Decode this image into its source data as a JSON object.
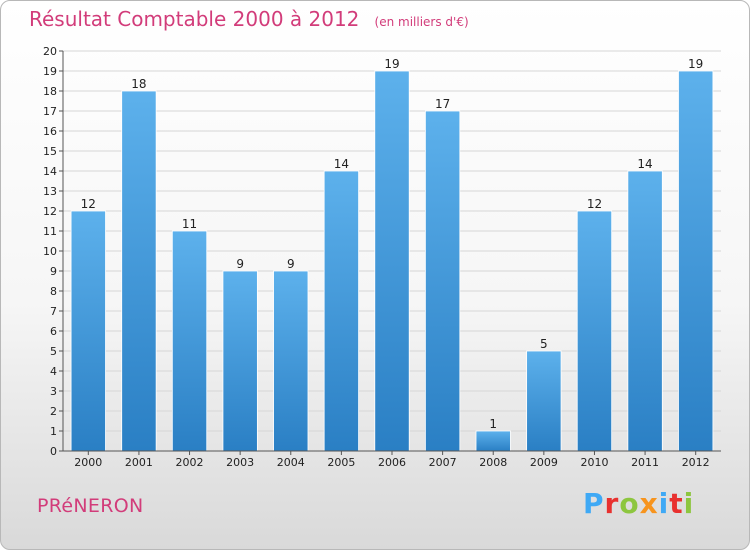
{
  "header": {
    "title": "Résultat Comptable 2000 à 2012",
    "subtitle": "(en milliers d'€)"
  },
  "footer": {
    "commune": "PRéNERON",
    "logo": [
      "P",
      "r",
      "o",
      "x",
      "i",
      "t",
      "i"
    ],
    "logo_colors": [
      "#3fa9f5",
      "#e8312f",
      "#8dc63f",
      "#f7941d",
      "#3fa9f5",
      "#e8312f",
      "#8dc63f"
    ]
  },
  "chart_data": {
    "type": "bar",
    "categories": [
      "2000",
      "2001",
      "2002",
      "2003",
      "2004",
      "2005",
      "2006",
      "2007",
      "2008",
      "2009",
      "2010",
      "2011",
      "2012"
    ],
    "values": [
      12,
      18,
      11,
      9,
      9,
      14,
      19,
      17,
      1,
      5,
      12,
      14,
      19
    ],
    "ylim": [
      0,
      20
    ],
    "yticks": [
      0,
      1,
      2,
      3,
      4,
      5,
      6,
      7,
      8,
      9,
      10,
      11,
      12,
      13,
      14,
      15,
      16,
      17,
      18,
      19,
      20
    ],
    "grid": true,
    "bar_color": "#4fa3e0"
  }
}
